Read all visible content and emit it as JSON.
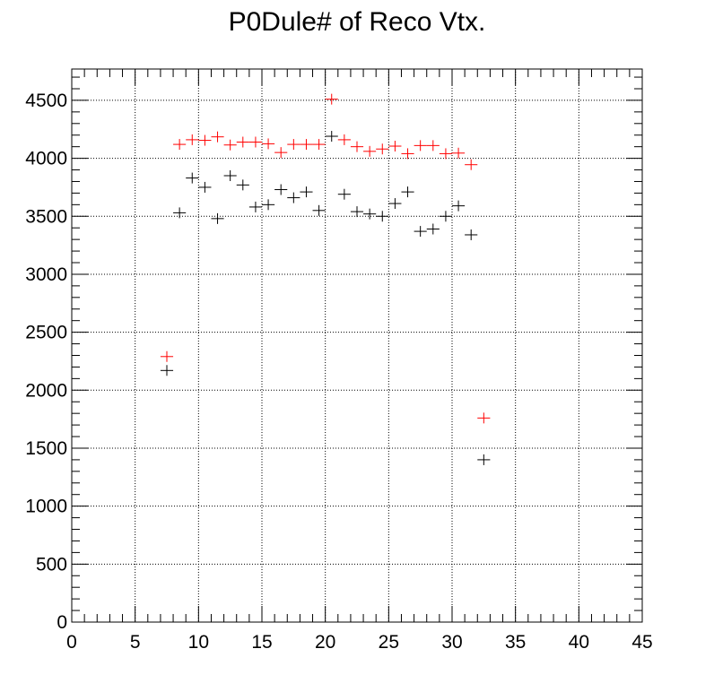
{
  "chart_data": {
    "type": "scatter",
    "title": "P0Dule# of Reco Vtx.",
    "xlabel": "",
    "ylabel": "",
    "xlim": [
      0,
      45
    ],
    "ylim": [
      0,
      4770
    ],
    "x_ticks": [
      0,
      5,
      10,
      15,
      20,
      25,
      30,
      35,
      40,
      45
    ],
    "y_ticks": [
      0,
      500,
      1000,
      1500,
      2000,
      2500,
      3000,
      3500,
      4000,
      4500
    ],
    "grid": true,
    "series": [
      {
        "color": "#ff0000",
        "x": [
          7.5,
          8.5,
          9.5,
          10.5,
          11.5,
          12.5,
          13.5,
          14.5,
          15.5,
          16.5,
          17.5,
          18.5,
          19.5,
          20.5,
          21.5,
          22.5,
          23.5,
          24.5,
          25.5,
          26.5,
          27.5,
          28.5,
          29.5,
          30.5,
          31.5,
          32.5
        ],
        "y": [
          2290,
          4120,
          4160,
          4155,
          4185,
          4115,
          4140,
          4140,
          4125,
          4050,
          4120,
          4120,
          4120,
          4510,
          4160,
          4100,
          4060,
          4080,
          4105,
          4040,
          4110,
          4110,
          4040,
          4045,
          3945,
          1760
        ],
        "yerr": [
          8,
          10,
          10,
          10,
          10,
          10,
          10,
          10,
          10,
          10,
          10,
          10,
          10,
          12,
          10,
          10,
          10,
          10,
          10,
          10,
          10,
          10,
          10,
          10,
          10,
          6
        ]
      },
      {
        "color": "#000000",
        "x": [
          7.5,
          8.5,
          9.5,
          10.5,
          11.5,
          12.5,
          13.5,
          14.5,
          15.5,
          16.5,
          17.5,
          18.5,
          19.5,
          20.5,
          21.5,
          22.5,
          23.5,
          24.5,
          25.5,
          26.5,
          27.5,
          28.5,
          29.5,
          30.5,
          31.5,
          32.5
        ],
        "y": [
          2170,
          3530,
          3830,
          3750,
          3480,
          3850,
          3770,
          3580,
          3600,
          3730,
          3660,
          3710,
          3550,
          4190,
          3690,
          3540,
          3520,
          3500,
          3610,
          3710,
          3370,
          3390,
          3500,
          3590,
          3340,
          1400
        ],
        "yerr": [
          150,
          160,
          160,
          160,
          150,
          160,
          160,
          150,
          150,
          160,
          150,
          150,
          130,
          140,
          130,
          130,
          130,
          130,
          130,
          140,
          100,
          100,
          120,
          100,
          100,
          70
        ]
      }
    ]
  }
}
